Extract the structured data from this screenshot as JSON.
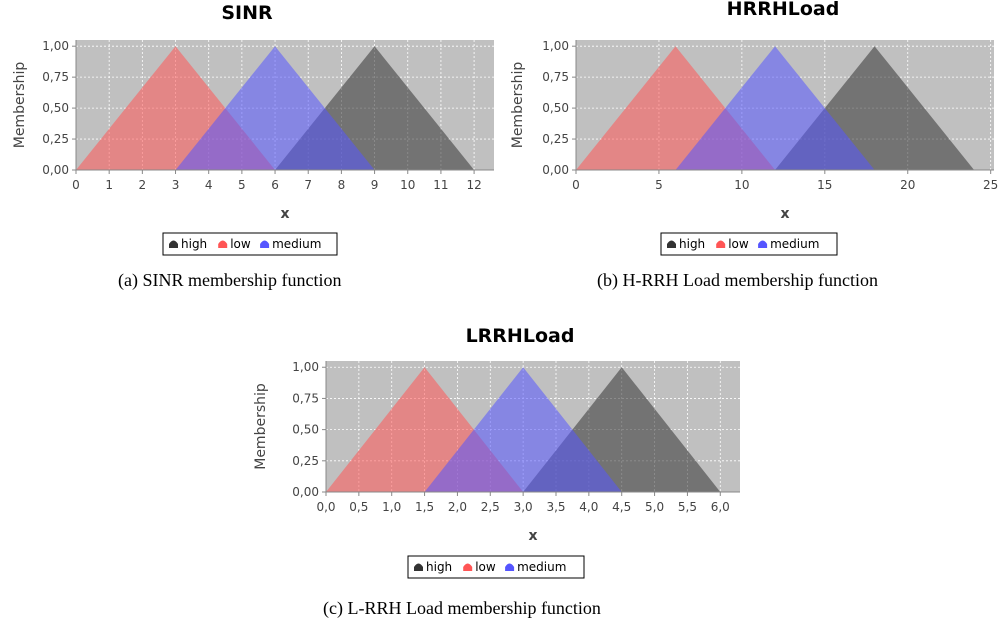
{
  "captions": [
    "(a) SINR membership function",
    "(b) H-RRH Load membership function",
    "(c) L-RRH Load membership function"
  ],
  "colors": {
    "plot_background": "#c0c0c0",
    "gridline": "#ffffff",
    "high": "#333333",
    "low": "#ff5555",
    "medium": "#5555ff"
  },
  "chart_data": [
    {
      "type": "area",
      "title": "SINR",
      "xlabel": "x",
      "ylabel": "Membership",
      "xlim": [
        0,
        12.6
      ],
      "ylim": [
        0,
        1.05
      ],
      "xticks": [
        0,
        1,
        2,
        3,
        4,
        5,
        6,
        7,
        8,
        9,
        10,
        11,
        12
      ],
      "xtick_labels": [
        "0",
        "1",
        "2",
        "3",
        "4",
        "5",
        "6",
        "7",
        "8",
        "9",
        "10",
        "11",
        "12"
      ],
      "yticks": [
        0,
        0.25,
        0.5,
        0.75,
        1.0
      ],
      "ytick_labels": [
        "0,00",
        "0,25",
        "0,50",
        "0,75",
        "1,00"
      ],
      "grid": true,
      "legend": "bottom-center",
      "series": [
        {
          "name": "high",
          "color": "#333333",
          "x": [
            6,
            9,
            12
          ],
          "y": [
            0,
            1,
            0
          ]
        },
        {
          "name": "low",
          "color": "#ff5555",
          "x": [
            0,
            3,
            6
          ],
          "y": [
            0,
            1,
            0
          ]
        },
        {
          "name": "medium",
          "color": "#5555ff",
          "x": [
            3,
            6,
            9
          ],
          "y": [
            0,
            1,
            0
          ]
        }
      ]
    },
    {
      "type": "area",
      "title": "HRRHLoad",
      "xlabel": "x",
      "ylabel": "Membership",
      "xlim": [
        0,
        25.2
      ],
      "ylim": [
        0,
        1.05
      ],
      "xticks": [
        0,
        5,
        10,
        15,
        20,
        25
      ],
      "xtick_labels": [
        "0",
        "5",
        "10",
        "15",
        "20",
        "25"
      ],
      "yticks": [
        0,
        0.25,
        0.5,
        0.75,
        1.0
      ],
      "ytick_labels": [
        "0,00",
        "0,25",
        "0,50",
        "0,75",
        "1,00"
      ],
      "grid": true,
      "legend": "bottom-center",
      "series": [
        {
          "name": "high",
          "color": "#333333",
          "x": [
            12,
            18,
            24
          ],
          "y": [
            0,
            1,
            0
          ]
        },
        {
          "name": "low",
          "color": "#ff5555",
          "x": [
            0,
            6,
            12
          ],
          "y": [
            0,
            1,
            0
          ]
        },
        {
          "name": "medium",
          "color": "#5555ff",
          "x": [
            6,
            12,
            18
          ],
          "y": [
            0,
            1,
            0
          ]
        }
      ]
    },
    {
      "type": "area",
      "title": "LRRHLoad",
      "xlabel": "x",
      "ylabel": "Membership",
      "xlim": [
        0,
        6.3
      ],
      "ylim": [
        0,
        1.05
      ],
      "xticks": [
        0,
        0.5,
        1,
        1.5,
        2,
        2.5,
        3,
        3.5,
        4,
        4.5,
        5,
        5.5,
        6
      ],
      "xtick_labels": [
        "0,0",
        "0,5",
        "1,0",
        "1,5",
        "2,0",
        "2,5",
        "3,0",
        "3,5",
        "4,0",
        "4,5",
        "5,0",
        "5,5",
        "6,0"
      ],
      "yticks": [
        0,
        0.25,
        0.5,
        0.75,
        1.0
      ],
      "ytick_labels": [
        "0,00",
        "0,25",
        "0,50",
        "0,75",
        "1,00"
      ],
      "grid": true,
      "legend": "bottom-center",
      "series": [
        {
          "name": "high",
          "color": "#333333",
          "x": [
            3,
            4.5,
            6
          ],
          "y": [
            0,
            1,
            0
          ]
        },
        {
          "name": "low",
          "color": "#ff5555",
          "x": [
            0,
            1.5,
            3
          ],
          "y": [
            0,
            1,
            0
          ]
        },
        {
          "name": "medium",
          "color": "#5555ff",
          "x": [
            1.5,
            3,
            4.5
          ],
          "y": [
            0,
            1,
            0
          ]
        }
      ]
    }
  ]
}
